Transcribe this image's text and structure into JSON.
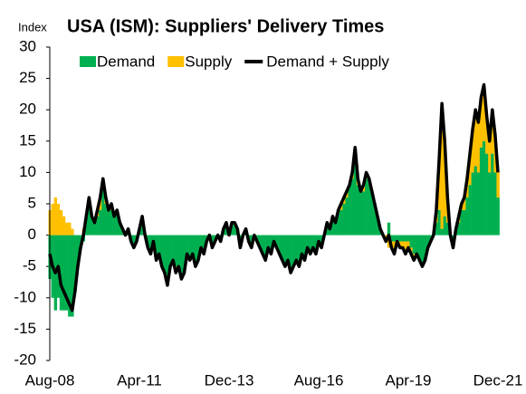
{
  "chart_data": {
    "type": "bar",
    "title": "USA (ISM): Suppliers' Delivery Times",
    "y_label": "Index",
    "categories": [
      "Aug-08",
      null,
      null,
      null,
      null,
      null,
      null,
      null,
      null,
      null,
      null,
      null,
      null,
      null,
      null,
      null,
      null,
      null,
      null,
      null,
      null,
      null,
      null,
      null,
      null,
      null,
      null,
      null,
      null,
      null,
      null,
      null,
      "Apr-11",
      null,
      null,
      null,
      null,
      null,
      null,
      null,
      null,
      null,
      null,
      null,
      null,
      null,
      null,
      null,
      null,
      null,
      null,
      null,
      null,
      null,
      null,
      null,
      null,
      null,
      null,
      null,
      null,
      null,
      null,
      null,
      "Dec-13",
      null,
      null,
      null,
      null,
      null,
      null,
      null,
      null,
      null,
      null,
      null,
      null,
      null,
      null,
      null,
      null,
      null,
      null,
      null,
      null,
      null,
      null,
      null,
      null,
      null,
      null,
      null,
      null,
      null,
      null,
      null,
      "Aug-16",
      null,
      null,
      null,
      null,
      null,
      null,
      null,
      null,
      null,
      null,
      null,
      null,
      null,
      null,
      null,
      null,
      null,
      null,
      null,
      null,
      null,
      null,
      null,
      null,
      null,
      null,
      null,
      null,
      null,
      null,
      null,
      "Apr-19",
      null,
      null,
      null,
      null,
      null,
      null,
      null,
      null,
      null,
      null,
      null,
      null,
      null,
      null,
      null,
      null,
      null,
      null,
      null,
      null,
      null,
      null,
      null,
      null,
      null,
      null,
      null,
      null,
      null,
      null,
      null,
      "Dec-21"
    ],
    "series": [
      {
        "name": "Demand",
        "color": "#00b050",
        "values": [
          -7,
          -10,
          -12,
          -10,
          -12,
          -12,
          -12,
          -13,
          -13,
          -9,
          -5,
          -2,
          -1,
          3,
          5,
          3,
          2,
          3,
          4,
          8,
          5,
          4,
          4,
          3,
          4,
          2,
          1,
          0,
          1,
          -1,
          -2,
          -1,
          1,
          3,
          0,
          -2,
          -3,
          -1,
          -4,
          -3,
          -5,
          -6,
          -7,
          -5,
          -4,
          -5,
          -5,
          -7,
          -6,
          -3,
          -4,
          -3,
          -5,
          -4,
          -2,
          -3,
          -1,
          0,
          -2,
          -1,
          0,
          -1,
          1,
          2,
          0,
          2,
          2,
          1,
          -2,
          0,
          1,
          -1,
          -2,
          0,
          -1,
          -2,
          -3,
          -4,
          -2,
          -3,
          -1,
          -2,
          -3,
          -4,
          -5,
          -4,
          -6,
          -5,
          -4,
          -5,
          -3,
          -4,
          -2,
          -3,
          -2,
          -3,
          -1,
          -2,
          0,
          2,
          1,
          3,
          2,
          4,
          4,
          5,
          6,
          8,
          9,
          13,
          8,
          7,
          7,
          9,
          9,
          7,
          5,
          3,
          1,
          0,
          0,
          2,
          -1,
          -1,
          -1,
          -1,
          -1,
          -1,
          -1,
          -2,
          -3,
          -3,
          -4,
          -5,
          -4,
          -2,
          -1,
          0,
          2,
          4,
          1,
          3,
          2,
          0,
          -2,
          1,
          2,
          4,
          4,
          6,
          8,
          10,
          11,
          10,
          14,
          15,
          13,
          10,
          13,
          10,
          6
        ]
      },
      {
        "name": "Supply",
        "color": "#ffc000",
        "values": [
          4,
          5,
          6,
          5,
          4,
          3,
          2,
          2,
          1,
          0,
          0,
          0,
          1,
          0,
          1,
          0,
          0,
          1,
          2,
          1,
          1,
          0,
          1,
          0,
          0,
          0,
          0,
          0,
          0,
          0,
          0,
          0,
          0,
          0,
          0,
          0,
          0,
          0,
          0,
          0,
          0,
          0,
          -1,
          0,
          0,
          -1,
          0,
          0,
          0,
          0,
          0,
          0,
          0,
          0,
          0,
          0,
          0,
          0,
          0,
          0,
          0,
          0,
          0,
          0,
          0,
          0,
          0,
          0,
          0,
          0,
          0,
          0,
          0,
          0,
          0,
          0,
          0,
          0,
          0,
          0,
          0,
          0,
          0,
          0,
          0,
          0,
          0,
          0,
          0,
          0,
          0,
          0,
          0,
          0,
          0,
          0,
          0,
          0,
          0,
          0,
          0,
          0,
          0,
          0,
          1,
          1,
          1,
          0,
          1,
          1,
          1,
          0,
          1,
          1,
          0,
          0,
          0,
          0,
          0,
          0,
          -1,
          -2,
          -1,
          -2,
          0,
          -1,
          -1,
          -2,
          -1,
          -1,
          -1,
          0,
          0,
          0,
          0,
          0,
          0,
          0,
          2,
          8,
          20,
          12,
          4,
          0,
          0,
          0,
          1,
          1,
          2,
          3,
          5,
          7,
          9,
          8,
          8,
          9,
          6,
          5,
          7,
          6,
          4
        ]
      },
      {
        "name": "Demand + Supply",
        "type": "line",
        "color": "#000000",
        "values": [
          -3,
          -5,
          -6,
          -5,
          -8,
          -9,
          -10,
          -11,
          -12,
          -9,
          -5,
          -2,
          0,
          3,
          6,
          3,
          2,
          4,
          6,
          9,
          6,
          4,
          5,
          3,
          4,
          2,
          1,
          0,
          1,
          -1,
          -2,
          -1,
          1,
          3,
          0,
          -2,
          -3,
          -1,
          -4,
          -3,
          -5,
          -6,
          -8,
          -5,
          -4,
          -6,
          -5,
          -7,
          -6,
          -3,
          -4,
          -3,
          -5,
          -4,
          -2,
          -3,
          -1,
          0,
          -2,
          -1,
          0,
          -1,
          1,
          2,
          0,
          2,
          2,
          1,
          -2,
          0,
          1,
          -1,
          -2,
          0,
          -1,
          -2,
          -3,
          -4,
          -2,
          -3,
          -1,
          -2,
          -3,
          -4,
          -5,
          -4,
          -6,
          -5,
          -4,
          -5,
          -3,
          -4,
          -2,
          -3,
          -2,
          -3,
          -1,
          -2,
          0,
          2,
          1,
          3,
          2,
          4,
          5,
          6,
          7,
          8,
          10,
          14,
          9,
          7,
          8,
          10,
          9,
          7,
          5,
          3,
          1,
          0,
          -1,
          0,
          -2,
          -3,
          -1,
          -2,
          -2,
          -3,
          -2,
          -3,
          -4,
          -3,
          -4,
          -5,
          -4,
          -2,
          -1,
          0,
          4,
          12,
          21,
          15,
          6,
          0,
          -2,
          1,
          3,
          5,
          6,
          9,
          13,
          17,
          20,
          18,
          22,
          24,
          19,
          15,
          20,
          16,
          10
        ]
      }
    ],
    "ylim": [
      -20,
      30
    ],
    "yticks": [
      -20,
      -15,
      -10,
      -5,
      0,
      5,
      10,
      15,
      20,
      25,
      30
    ],
    "stacked": true,
    "grid": false,
    "legend": "top"
  }
}
